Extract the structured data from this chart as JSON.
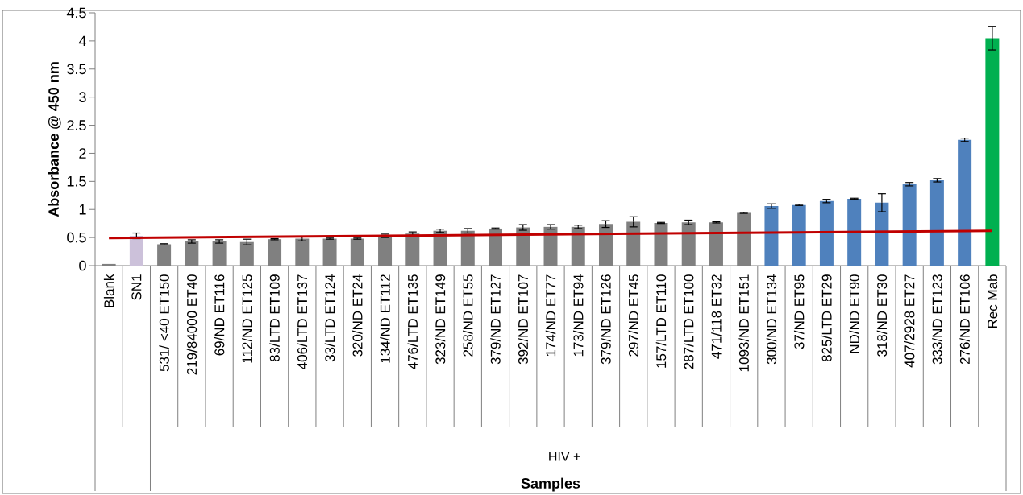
{
  "chart_data": {
    "type": "bar",
    "ylabel": "Absorbance @ 450 nm",
    "annotations": [
      "HIV +",
      "Samples"
    ],
    "categories": [
      "Blank",
      "SN1",
      "531/ <40 ET150",
      "219/84000 ET40",
      "69/ND ET116",
      "112/ND ET125",
      "83/LTD ET109",
      "406/LTD ET137",
      "33/LTD ET124",
      "320/ND ET24",
      "134/ND ET112",
      "476/LTD ET135",
      "323/ND ET149",
      "258/ND ET55",
      "379/ND ET127",
      "392/ND ET107",
      "174/ND ET77",
      "173/ND ET94",
      "379/ND ET126",
      "297/ND ET45",
      "157/LTD ET110",
      "287/LTD ET100",
      "471/118 ET32",
      "1093/ND ET151",
      "300/ND ET134",
      "37/ND ET95",
      "825/LTD ET29",
      "ND/ND ET90",
      "318/ND ET30",
      "407/2928 ET27",
      "333/ND ET123",
      "276/ND ET106",
      "Rec Mab"
    ],
    "series": [
      {
        "values": [
          0.03,
          0.53,
          0.38,
          0.43,
          0.43,
          0.42,
          0.47,
          0.48,
          0.48,
          0.48,
          0.53,
          0.57,
          0.62,
          0.62,
          0.66,
          0.68,
          0.69,
          0.69,
          0.74,
          0.78,
          0.76,
          0.77,
          0.77,
          0.94,
          1.06,
          1.08,
          1.15,
          1.19,
          1.12,
          1.45,
          1.52,
          2.24,
          4.05
        ],
        "errors": [
          null,
          0.05,
          0.01,
          0.03,
          0.03,
          0.05,
          0.01,
          0.04,
          0.01,
          0.01,
          0.03,
          0.03,
          0.03,
          0.04,
          0.01,
          0.05,
          0.04,
          0.03,
          0.06,
          0.09,
          0.01,
          0.04,
          0.01,
          0.01,
          0.04,
          0.01,
          0.03,
          0.01,
          0.16,
          0.03,
          0.03,
          0.03,
          0.21
        ],
        "colors": [
          "#808080",
          "#ccc1da",
          "#808080",
          "#808080",
          "#808080",
          "#808080",
          "#808080",
          "#808080",
          "#808080",
          "#808080",
          "#808080",
          "#808080",
          "#808080",
          "#808080",
          "#808080",
          "#808080",
          "#808080",
          "#808080",
          "#808080",
          "#808080",
          "#808080",
          "#808080",
          "#808080",
          "#808080",
          "#4f81bd",
          "#4f81bd",
          "#4f81bd",
          "#4f81bd",
          "#4f81bd",
          "#4f81bd",
          "#4f81bd",
          "#4f81bd",
          "#00b050"
        ]
      },
      {
        "type": "line",
        "color": "#c00000",
        "x": [
          "Blank",
          "Rec Mab"
        ],
        "values": [
          0.49,
          0.62
        ]
      }
    ],
    "ylim": [
      0,
      4.5
    ],
    "yticks": [
      0,
      0.5,
      1,
      1.5,
      2,
      2.5,
      3,
      3.5,
      4,
      4.5
    ]
  }
}
